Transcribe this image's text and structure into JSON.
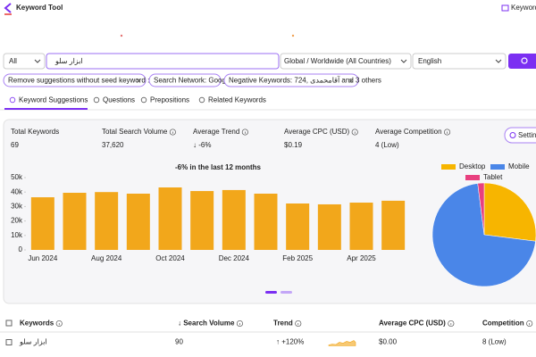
{
  "header": {
    "title": "Keyword Tool",
    "link": "Keyword"
  },
  "search": {
    "scope": "All",
    "query": "ابزار سلو",
    "location": "Global / Worldwide (All Countries)",
    "language": "English"
  },
  "filters": [
    "Remove suggestions without seed keyword : No",
    "Search Network: Google",
    "Negative Keywords: 724, آقامحمدی and 3 others"
  ],
  "tabs": [
    "Keyword Suggestions",
    "Questions",
    "Prepositions",
    "Related Keywords"
  ],
  "stats": [
    {
      "label": "Total Keywords",
      "value": "69"
    },
    {
      "label": "Total Search Volume",
      "value": "37,620"
    },
    {
      "label": "Average Trend",
      "value": "↓ -6%",
      "color": "#e53935"
    },
    {
      "label": "Average CPC (USD)",
      "value": "$0.19"
    },
    {
      "label": "Average Competition",
      "value": "4 (Low)",
      "color": "#1e9e4a"
    }
  ],
  "settings_button": "Settings",
  "chart_data": [
    {
      "type": "bar",
      "title": "-6% in the last 12 months",
      "color": "#f2a71b",
      "categories": [
        "Jun 2024",
        null,
        "Aug 2024",
        null,
        "Oct 2024",
        null,
        "Dec 2024",
        null,
        "Feb 2025",
        null,
        "Apr 2025",
        null
      ],
      "values": [
        36400,
        39500,
        40000,
        38900,
        43200,
        40700,
        41400,
        38900,
        32100,
        31500,
        32700,
        34000
      ],
      "ylim": [
        0,
        50000
      ],
      "yticks": [
        0,
        {
          "value": 10000,
          "label": "10k"
        },
        {
          "value": 20000,
          "label": "20k"
        },
        {
          "value": 30000,
          "label": "30k"
        },
        {
          "value": 40000,
          "label": "40k"
        },
        {
          "value": 50000,
          "label": "50k"
        }
      ],
      "grid": false
    },
    {
      "type": "pie",
      "legend": "top",
      "series": [
        {
          "name": "Desktop",
          "color": "#f7b500",
          "values": [
            27
          ]
        },
        {
          "name": "Mobile",
          "color": "#4a86e8",
          "values": [
            71
          ]
        },
        {
          "name": "Tablet",
          "color": "#e8407f",
          "values": [
            2
          ]
        }
      ]
    }
  ],
  "table": {
    "columns": [
      "Keywords",
      "↓ Search Volume",
      "Trend",
      "Average CPC (USD)",
      "Competition"
    ],
    "rows": [
      [
        "ابزار سلو",
        "90",
        "↑ +120%",
        "$0.00",
        "8 (Low)"
      ]
    ]
  }
}
